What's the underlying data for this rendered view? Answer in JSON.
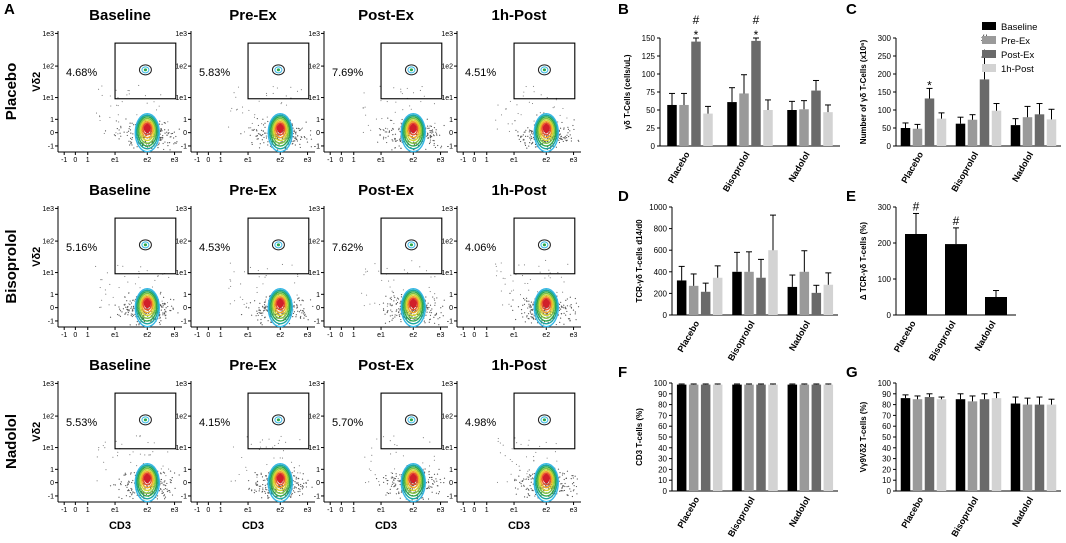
{
  "panel_labels": {
    "A": "A",
    "B": "B",
    "C": "C",
    "D": "D",
    "E": "E",
    "F": "F",
    "G": "G"
  },
  "flow": {
    "rows": [
      "Placebo",
      "Bisoprolol",
      "Nadolol"
    ],
    "columns": [
      "Baseline",
      "Pre-Ex",
      "Post-Ex",
      "1h-Post"
    ],
    "y_axis_label": "Vδ2",
    "x_axis_label": "CD3",
    "tick_labels": [
      "-1",
      "0",
      "1",
      "e1",
      "e2",
      "e3"
    ],
    "y_tick_labels": [
      "1e3",
      "1e2",
      "1e1",
      "1",
      "0",
      "-1"
    ],
    "percentages": [
      [
        "4.68%",
        "5.83%",
        "7.69%",
        "4.51%"
      ],
      [
        "5.16%",
        "4.53%",
        "7.62%",
        "4.06%"
      ],
      [
        "5.53%",
        "4.15%",
        "5.70%",
        "4.98%"
      ]
    ]
  },
  "colors": {
    "Baseline": "#000000",
    "Pre-Ex": "#9a9a9a",
    "Post-Ex": "#6a6a6a",
    "1h-Post": "#d3d3d3"
  },
  "chart_data": [
    {
      "id": "B",
      "type": "bar",
      "title": "",
      "ylabel": "γδ T-Cells (cells/uL)",
      "xlabel": "",
      "ylim": [
        0,
        150
      ],
      "yticks": [
        0,
        25,
        50,
        75,
        100,
        125,
        150
      ],
      "categories": [
        "Placebo",
        "Bisoprolol",
        "Nadolol"
      ],
      "legend": [
        "Baseline",
        "Pre-Ex",
        "Post-Ex",
        "1h-Post"
      ],
      "legend_position": "none",
      "series": [
        {
          "name": "Baseline",
          "values": [
            57,
            61,
            50
          ],
          "errors": [
            16,
            20,
            12
          ]
        },
        {
          "name": "Pre-Ex",
          "values": [
            57,
            73,
            51
          ],
          "errors": [
            16,
            26,
            12
          ]
        },
        {
          "name": "Post-Ex",
          "values": [
            145,
            146,
            77
          ],
          "errors": [
            33,
            30,
            14
          ]
        },
        {
          "name": "1h-Post",
          "values": [
            45,
            50,
            47
          ],
          "errors": [
            10,
            14,
            10
          ]
        }
      ],
      "annotations": [
        {
          "category": "Placebo",
          "series": "Post-Ex",
          "marks": [
            "*",
            "#"
          ]
        },
        {
          "category": "Bisoprolol",
          "series": "Post-Ex",
          "marks": [
            "*",
            "#"
          ]
        }
      ]
    },
    {
      "id": "C",
      "type": "bar",
      "title": "",
      "ylabel": "Number of γδ T-Cells (x10⁶)",
      "xlabel": "",
      "ylim": [
        0,
        300
      ],
      "yticks": [
        0,
        50,
        100,
        150,
        200,
        250,
        300
      ],
      "categories": [
        "Placebo",
        "Bisoprolol",
        "Nadolol"
      ],
      "legend": [
        "Baseline",
        "Pre-Ex",
        "Post-Ex",
        "1h-Post"
      ],
      "legend_position": "top-right",
      "series": [
        {
          "name": "Baseline",
          "values": [
            50,
            62,
            58
          ],
          "errors": [
            14,
            18,
            18
          ]
        },
        {
          "name": "Pre-Ex",
          "values": [
            48,
            73,
            80
          ],
          "errors": [
            12,
            14,
            30
          ]
        },
        {
          "name": "Post-Ex",
          "values": [
            132,
            185,
            88
          ],
          "errors": [
            28,
            62,
            30
          ]
        },
        {
          "name": "1h-Post",
          "values": [
            76,
            98,
            74
          ],
          "errors": [
            16,
            20,
            28
          ]
        }
      ],
      "annotations": [
        {
          "category": "Placebo",
          "series": "Post-Ex",
          "marks": [
            "*"
          ]
        },
        {
          "category": "Bisoprolol",
          "series": "Post-Ex",
          "marks": [
            "*",
            "#"
          ]
        }
      ]
    },
    {
      "id": "D",
      "type": "bar",
      "title": "",
      "ylabel": "TCR-γδ T-cells d14/d0",
      "xlabel": "",
      "ylim": [
        0,
        1000
      ],
      "yticks": [
        0,
        200,
        400,
        600,
        800,
        1000
      ],
      "categories": [
        "Placebo",
        "Bisoprolol",
        "Nadolol"
      ],
      "legend": [
        "Baseline",
        "Pre-Ex",
        "Post-Ex",
        "1h-Post"
      ],
      "legend_position": "none",
      "series": [
        {
          "name": "Baseline",
          "values": [
            320,
            400,
            260
          ],
          "errors": [
            130,
            180,
            110
          ]
        },
        {
          "name": "Pre-Ex",
          "values": [
            270,
            400,
            400
          ],
          "errors": [
            110,
            185,
            195
          ]
        },
        {
          "name": "Post-Ex",
          "values": [
            215,
            345,
            205
          ],
          "errors": [
            80,
            170,
            70
          ]
        },
        {
          "name": "1h-Post",
          "values": [
            345,
            600,
            280
          ],
          "errors": [
            110,
            325,
            110
          ]
        }
      ],
      "annotations": []
    },
    {
      "id": "E",
      "type": "bar",
      "title": "",
      "ylabel": "Δ TCR-γδ T-cells (%)",
      "xlabel": "",
      "ylim": [
        0,
        300
      ],
      "yticks": [
        0,
        100,
        200,
        300
      ],
      "categories": [
        "Placebo",
        "Bisoprolol",
        "Nadolol"
      ],
      "legend": [],
      "legend_position": "none",
      "series": [
        {
          "name": "Δ",
          "values": [
            225,
            197,
            50
          ],
          "errors": [
            57,
            45,
            18
          ]
        }
      ],
      "annotations": [
        {
          "category": "Placebo",
          "series": "Δ",
          "marks": [
            "#"
          ]
        },
        {
          "category": "Bisoprolol",
          "series": "Δ",
          "marks": [
            "#"
          ]
        }
      ]
    },
    {
      "id": "F",
      "type": "bar",
      "title": "",
      "ylabel": "CD3 T-cells (%)",
      "xlabel": "",
      "ylim": [
        0,
        100
      ],
      "yticks": [
        0,
        10,
        20,
        30,
        40,
        50,
        60,
        70,
        80,
        90,
        100
      ],
      "categories": [
        "Placebo",
        "Bisoprolol",
        "Nadolol"
      ],
      "legend": [
        "Baseline",
        "Pre-Ex",
        "Post-Ex",
        "1h-Post"
      ],
      "legend_position": "none",
      "series": [
        {
          "name": "Baseline",
          "values": [
            98.5,
            98.5,
            98.5
          ],
          "errors": [
            0.6,
            0.6,
            0.6
          ]
        },
        {
          "name": "Pre-Ex",
          "values": [
            98.5,
            98.5,
            98.5
          ],
          "errors": [
            0.6,
            0.6,
            0.6
          ]
        },
        {
          "name": "Post-Ex",
          "values": [
            98.5,
            98.5,
            98.5
          ],
          "errors": [
            0.6,
            0.6,
            0.6
          ]
        },
        {
          "name": "1h-Post",
          "values": [
            98.5,
            98.5,
            98.5
          ],
          "errors": [
            0.6,
            0.6,
            0.6
          ]
        }
      ],
      "annotations": []
    },
    {
      "id": "G",
      "type": "bar",
      "title": "",
      "ylabel": "Vγ9Vδ2 T-cells (%)",
      "xlabel": "",
      "ylim": [
        0,
        100
      ],
      "yticks": [
        0,
        10,
        20,
        30,
        40,
        50,
        60,
        70,
        80,
        90,
        100
      ],
      "categories": [
        "Placebo",
        "Bisoprolol",
        "Nadolol"
      ],
      "legend": [
        "Baseline",
        "Pre-Ex",
        "Post-Ex",
        "1h-Post"
      ],
      "legend_position": "none",
      "series": [
        {
          "name": "Baseline",
          "values": [
            86,
            85,
            81
          ],
          "errors": [
            3,
            5,
            6
          ]
        },
        {
          "name": "Pre-Ex",
          "values": [
            85,
            83,
            80
          ],
          "errors": [
            3,
            5,
            6
          ]
        },
        {
          "name": "Post-Ex",
          "values": [
            87,
            85,
            80
          ],
          "errors": [
            3,
            5,
            7
          ]
        },
        {
          "name": "1h-Post",
          "values": [
            85,
            86,
            80
          ],
          "errors": [
            2,
            5,
            5
          ]
        }
      ],
      "annotations": []
    }
  ]
}
